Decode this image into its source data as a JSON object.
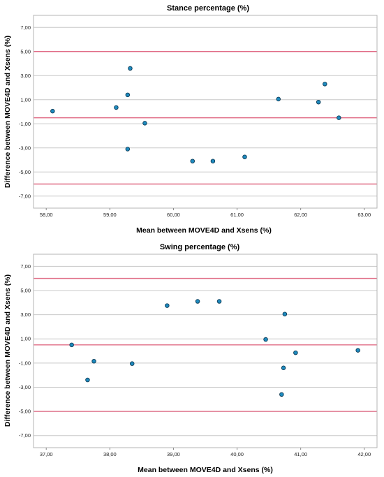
{
  "chart_data": [
    {
      "type": "scatter",
      "title": "Stance percentage (%)",
      "xlabel": "Mean between MOVE4D and Xsens (%)",
      "ylabel": "Difference between MOVE4D and Xsens (%)",
      "xlim": [
        57.8,
        63.2
      ],
      "ylim": [
        -8.0,
        8.0
      ],
      "xticks": [
        58,
        59,
        60,
        61,
        62,
        63
      ],
      "xtick_labels": [
        "58,00",
        "59,00",
        "60,00",
        "61,00",
        "62,00",
        "63,00"
      ],
      "yticks": [
        7,
        5,
        3,
        1,
        -1,
        -3,
        -5,
        -7
      ],
      "ytick_labels": [
        "7,00",
        "5,00",
        "3,00",
        "1,00",
        "-1,00",
        "-3,00",
        "-5,00",
        "-7,00"
      ],
      "reference_lines": [
        5.0,
        -0.5,
        -6.0
      ],
      "grid": true,
      "points": [
        {
          "x": 58.1,
          "y": 0.05
        },
        {
          "x": 59.1,
          "y": 0.35
        },
        {
          "x": 59.28,
          "y": 1.4
        },
        {
          "x": 59.32,
          "y": 3.6
        },
        {
          "x": 59.28,
          "y": -3.1
        },
        {
          "x": 59.55,
          "y": -0.95
        },
        {
          "x": 60.3,
          "y": -4.1
        },
        {
          "x": 60.62,
          "y": -4.1
        },
        {
          "x": 61.12,
          "y": -3.75
        },
        {
          "x": 61.65,
          "y": 1.05
        },
        {
          "x": 62.28,
          "y": 0.8
        },
        {
          "x": 62.38,
          "y": 2.3
        },
        {
          "x": 62.6,
          "y": -0.5
        }
      ],
      "colors": {
        "points": "#1e8bbf",
        "reference": "#e06b85",
        "grid": "#c8c8c8"
      }
    },
    {
      "type": "scatter",
      "title": "Swing percentage (%)",
      "xlabel": "Mean between MOVE4D and Xsens (%)",
      "ylabel": "Difference between MOVE4D and Xsens (%)",
      "xlim": [
        36.8,
        42.2
      ],
      "ylim": [
        -8.0,
        8.0
      ],
      "xticks": [
        37,
        38,
        39,
        40,
        41,
        42
      ],
      "xtick_labels": [
        "37,00",
        "38,00",
        "39,00",
        "40,00",
        "41,00",
        "42,00"
      ],
      "yticks": [
        7,
        5,
        3,
        1,
        -1,
        -3,
        -5,
        -7
      ],
      "ytick_labels": [
        "7,00",
        "5,00",
        "3,00",
        "1,00",
        "-1,00",
        "-3,00",
        "-5,00",
        "-7,00"
      ],
      "reference_lines": [
        6.0,
        0.5,
        -5.0
      ],
      "grid": true,
      "points": [
        {
          "x": 37.4,
          "y": 0.5
        },
        {
          "x": 37.65,
          "y": -2.4
        },
        {
          "x": 37.75,
          "y": -0.85
        },
        {
          "x": 38.35,
          "y": -1.05
        },
        {
          "x": 38.9,
          "y": 3.75
        },
        {
          "x": 39.38,
          "y": 4.1
        },
        {
          "x": 39.72,
          "y": 4.1
        },
        {
          "x": 40.45,
          "y": 0.95
        },
        {
          "x": 40.7,
          "y": -3.6
        },
        {
          "x": 40.73,
          "y": -1.4
        },
        {
          "x": 40.75,
          "y": 3.05
        },
        {
          "x": 40.92,
          "y": -0.15
        },
        {
          "x": 41.9,
          "y": 0.05
        }
      ],
      "colors": {
        "points": "#1e8bbf",
        "reference": "#e06b85",
        "grid": "#c8c8c8"
      }
    }
  ]
}
